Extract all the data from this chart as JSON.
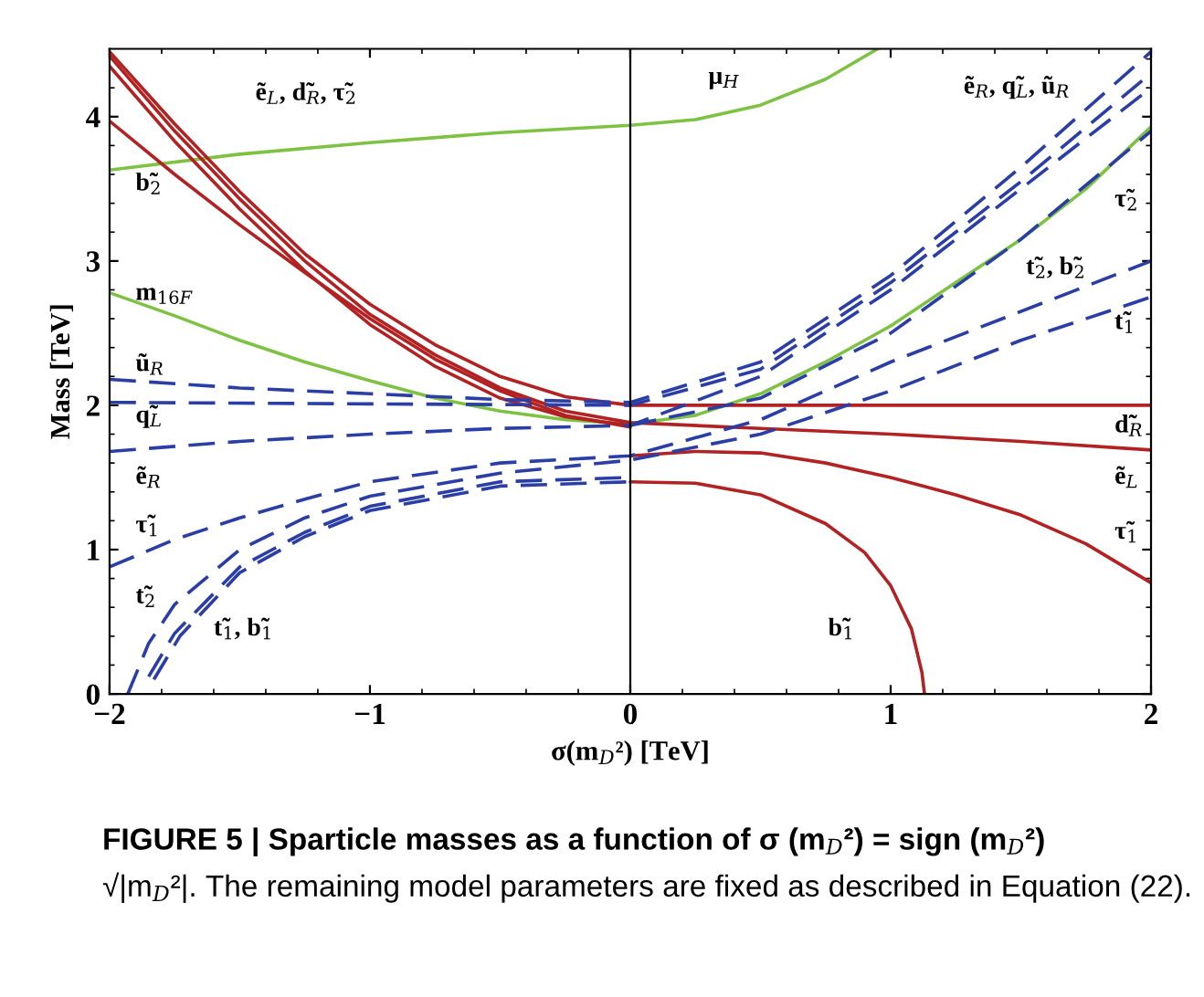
{
  "chart_data": {
    "type": "line",
    "xlabel": "σ(m$_{D}$²) [TeV]",
    "ylabel": "Mass [TeV]",
    "xlim": [
      -2,
      2
    ],
    "ylim": [
      0,
      4.47
    ],
    "xticks": [
      {
        "value": -2,
        "label": "−2"
      },
      {
        "value": -1,
        "label": "−1"
      },
      0,
      1,
      2
    ],
    "yticks": [
      0,
      1,
      2,
      3,
      4
    ],
    "grid": false,
    "legend": false,
    "ref_lines": [
      {
        "axis": "x",
        "value": 0,
        "label": null,
        "color": "#000000"
      }
    ],
    "series": [
      {
        "color": "#7dc242",
        "line_style": "solid",
        "x": [
          -2,
          -1.5,
          -1,
          -0.5,
          0,
          0.25,
          0.5,
          0.75,
          0.95
        ],
        "values": [
          3.63,
          3.74,
          3.82,
          3.89,
          3.94,
          3.98,
          4.08,
          4.26,
          4.47
        ]
      },
      {
        "color": "#7dc242",
        "line_style": "solid",
        "x": [
          -2,
          -1.75,
          -1.5,
          -1.25,
          -1,
          -0.75,
          -0.5,
          -0.25,
          0,
          0.25,
          0.5,
          0.75,
          1,
          1.25,
          1.5,
          1.75,
          2
        ],
        "values": [
          2.78,
          2.62,
          2.45,
          2.3,
          2.17,
          2.05,
          1.96,
          1.9,
          1.87,
          1.93,
          2.08,
          2.3,
          2.55,
          2.85,
          3.15,
          3.5,
          3.93
        ]
      },
      {
        "color": "#b22222",
        "line_style": "solid",
        "x": [
          -2,
          -1.75,
          -1.5,
          -1.25,
          -1,
          -0.75,
          -0.5,
          -0.25,
          0,
          0.5,
          1,
          1.5,
          2
        ],
        "values": [
          4.45,
          3.95,
          3.48,
          3.05,
          2.7,
          2.42,
          2.2,
          2.06,
          2.0,
          2.0,
          2.0,
          2.0,
          2.0
        ]
      },
      {
        "color": "#b22222",
        "line_style": "solid",
        "x": [
          -2,
          -1.75,
          -1.5,
          -1.25,
          -1,
          -0.75,
          -0.5,
          -0.25,
          0,
          0.5,
          1,
          1.5,
          2
        ],
        "values": [
          4.42,
          3.9,
          3.43,
          3.0,
          2.63,
          2.35,
          2.12,
          1.96,
          1.88,
          1.84,
          1.8,
          1.75,
          1.69
        ]
      },
      {
        "color": "#b22222",
        "line_style": "solid",
        "x": [
          -2,
          -1.75,
          -1.5,
          -1.25,
          -1,
          -0.75,
          -0.5,
          -0.25,
          0
        ],
        "values": [
          4.35,
          3.83,
          3.36,
          2.93,
          2.56,
          2.27,
          2.05,
          1.92,
          1.86
        ]
      },
      {
        "color": "#b22222",
        "line_style": "solid",
        "x": [
          -2,
          -1.75,
          -1.5,
          -1.25,
          -1,
          -0.75,
          -0.5,
          -0.25,
          0
        ],
        "values": [
          3.97,
          3.6,
          3.25,
          2.92,
          2.6,
          2.32,
          2.1,
          1.93,
          1.85
        ]
      },
      {
        "color": "#b22222",
        "line_style": "solid",
        "x": [
          0,
          0.25,
          0.5,
          0.75,
          1,
          1.25,
          1.5,
          1.75,
          2
        ],
        "values": [
          1.65,
          1.68,
          1.67,
          1.6,
          1.5,
          1.38,
          1.24,
          1.04,
          0.77
        ]
      },
      {
        "color": "#b22222",
        "line_style": "solid",
        "x": [
          0,
          0.25,
          0.5,
          0.75,
          0.9,
          1,
          1.08,
          1.12,
          1.13
        ],
        "values": [
          1.47,
          1.46,
          1.38,
          1.18,
          0.98,
          0.75,
          0.45,
          0.15,
          0
        ]
      },
      {
        "color": "#2b3ea6",
        "line_style": "dashed",
        "x": [
          -2,
          -1.5,
          -1,
          -0.5,
          0,
          0.5,
          1,
          1.5,
          2
        ],
        "values": [
          2.18,
          2.12,
          2.08,
          2.04,
          2.02,
          2.3,
          2.9,
          3.65,
          4.45
        ]
      },
      {
        "color": "#2b3ea6",
        "line_style": "dashed",
        "x": [
          -2,
          -1,
          0,
          0.5,
          1,
          1.5,
          2
        ],
        "values": [
          2.02,
          2.01,
          2.0,
          2.25,
          2.85,
          3.55,
          4.3
        ]
      },
      {
        "color": "#2b3ea6",
        "line_style": "dashed",
        "x": [
          -2,
          -1.5,
          -1,
          -0.5,
          0,
          0.5,
          1,
          1.5,
          2
        ],
        "values": [
          1.68,
          1.75,
          1.8,
          1.84,
          1.86,
          2.2,
          2.8,
          3.5,
          4.2
        ]
      },
      {
        "color": "#2b3ea6",
        "line_style": "dashed",
        "x": [
          0,
          0.5,
          1,
          1.5,
          2
        ],
        "values": [
          1.86,
          2.05,
          2.5,
          3.15,
          3.9
        ]
      },
      {
        "color": "#2b3ea6",
        "line_style": "dashed",
        "x": [
          -2,
          -1.75,
          -1.5,
          -1.25,
          -1,
          -0.5,
          0,
          0.5,
          1,
          1.5,
          2
        ],
        "values": [
          0.88,
          1.07,
          1.22,
          1.35,
          1.47,
          1.6,
          1.65,
          1.9,
          2.3,
          2.65,
          3.0
        ]
      },
      {
        "color": "#2b3ea6",
        "line_style": "dashed",
        "x": [
          -1.93,
          -1.85,
          -1.75,
          -1.5,
          -1.25,
          -1,
          -0.5,
          0,
          0.5,
          1,
          1.5,
          2
        ],
        "values": [
          0,
          0.35,
          0.62,
          1.0,
          1.22,
          1.37,
          1.53,
          1.62,
          1.8,
          2.1,
          2.45,
          2.75
        ]
      },
      {
        "color": "#2b3ea6",
        "line_style": "dashed",
        "x": [
          -1.85,
          -1.75,
          -1.5,
          -1.25,
          -1,
          -0.5,
          0
        ],
        "values": [
          0.12,
          0.42,
          0.88,
          1.12,
          1.3,
          1.47,
          1.5
        ]
      },
      {
        "color": "#2b3ea6",
        "line_style": "dashed",
        "x": [
          -1.83,
          -1.73,
          -1.5,
          -1.25,
          -1,
          -0.5,
          0
        ],
        "values": [
          0.1,
          0.4,
          0.84,
          1.09,
          1.27,
          1.44,
          1.47
        ]
      }
    ],
    "annotations": [
      "ẽ$_{L}$, d̃$_{R}$, τ̃$_{2}$",
      "b̃$_{2}$",
      "m$_{16F}$",
      "ũ$_{R}$",
      "q̃$_{L}$",
      "ẽ$_{R}$",
      "τ̃$_{1}$",
      "t̃$_{2}$",
      "t̃$_{1}$, b̃$_{1}$",
      "μ$_{H}$",
      "ẽ$_{R}$, q̃$_{L}$, ũ$_{R}$",
      "τ̃$_{2}$",
      "t̃$_{2}$, b̃$_{2}$",
      "t̃$_{1}$",
      "d̃$_{R}$",
      "ẽ$_{L}$",
      "τ̃$_{1}$",
      "b̃$_{1}$",
      "FIGURE 5 | Sparticle masses as a function of σ (m$_{D}$²) = sign (m$_{D}$²)",
      "√|m$_{D}$²|. The remaining model parameters are fixed as described in Equation (22)."
    ]
  }
}
